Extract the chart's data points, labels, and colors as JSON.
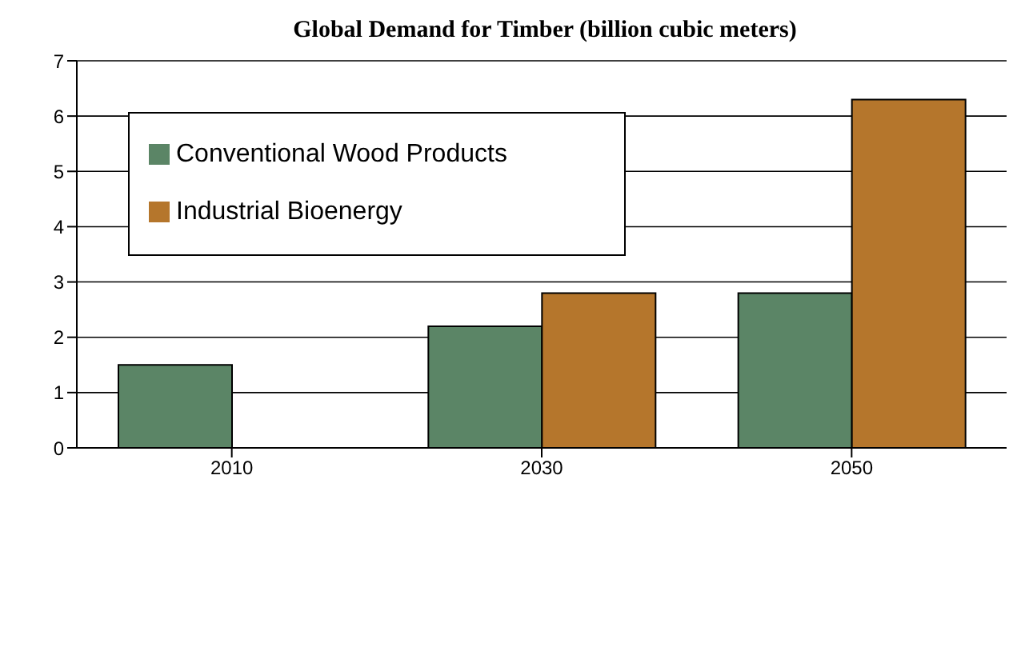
{
  "chart_data": {
    "type": "bar",
    "title": "Global Demand for Timber  (billion cubic meters)",
    "categories": [
      "2010",
      "2030",
      "2050"
    ],
    "series": [
      {
        "name": "Conventional Wood Products",
        "color": "#5b8566",
        "values": [
          1.5,
          2.2,
          2.8
        ]
      },
      {
        "name": "Industrial Bioenergy",
        "color": "#b5762c",
        "values": [
          null,
          2.8,
          6.3
        ]
      }
    ],
    "ylim": [
      0,
      7
    ],
    "yticks": [
      0,
      1,
      2,
      3,
      4,
      5,
      6,
      7
    ],
    "grid": "y",
    "legend": "top left"
  }
}
